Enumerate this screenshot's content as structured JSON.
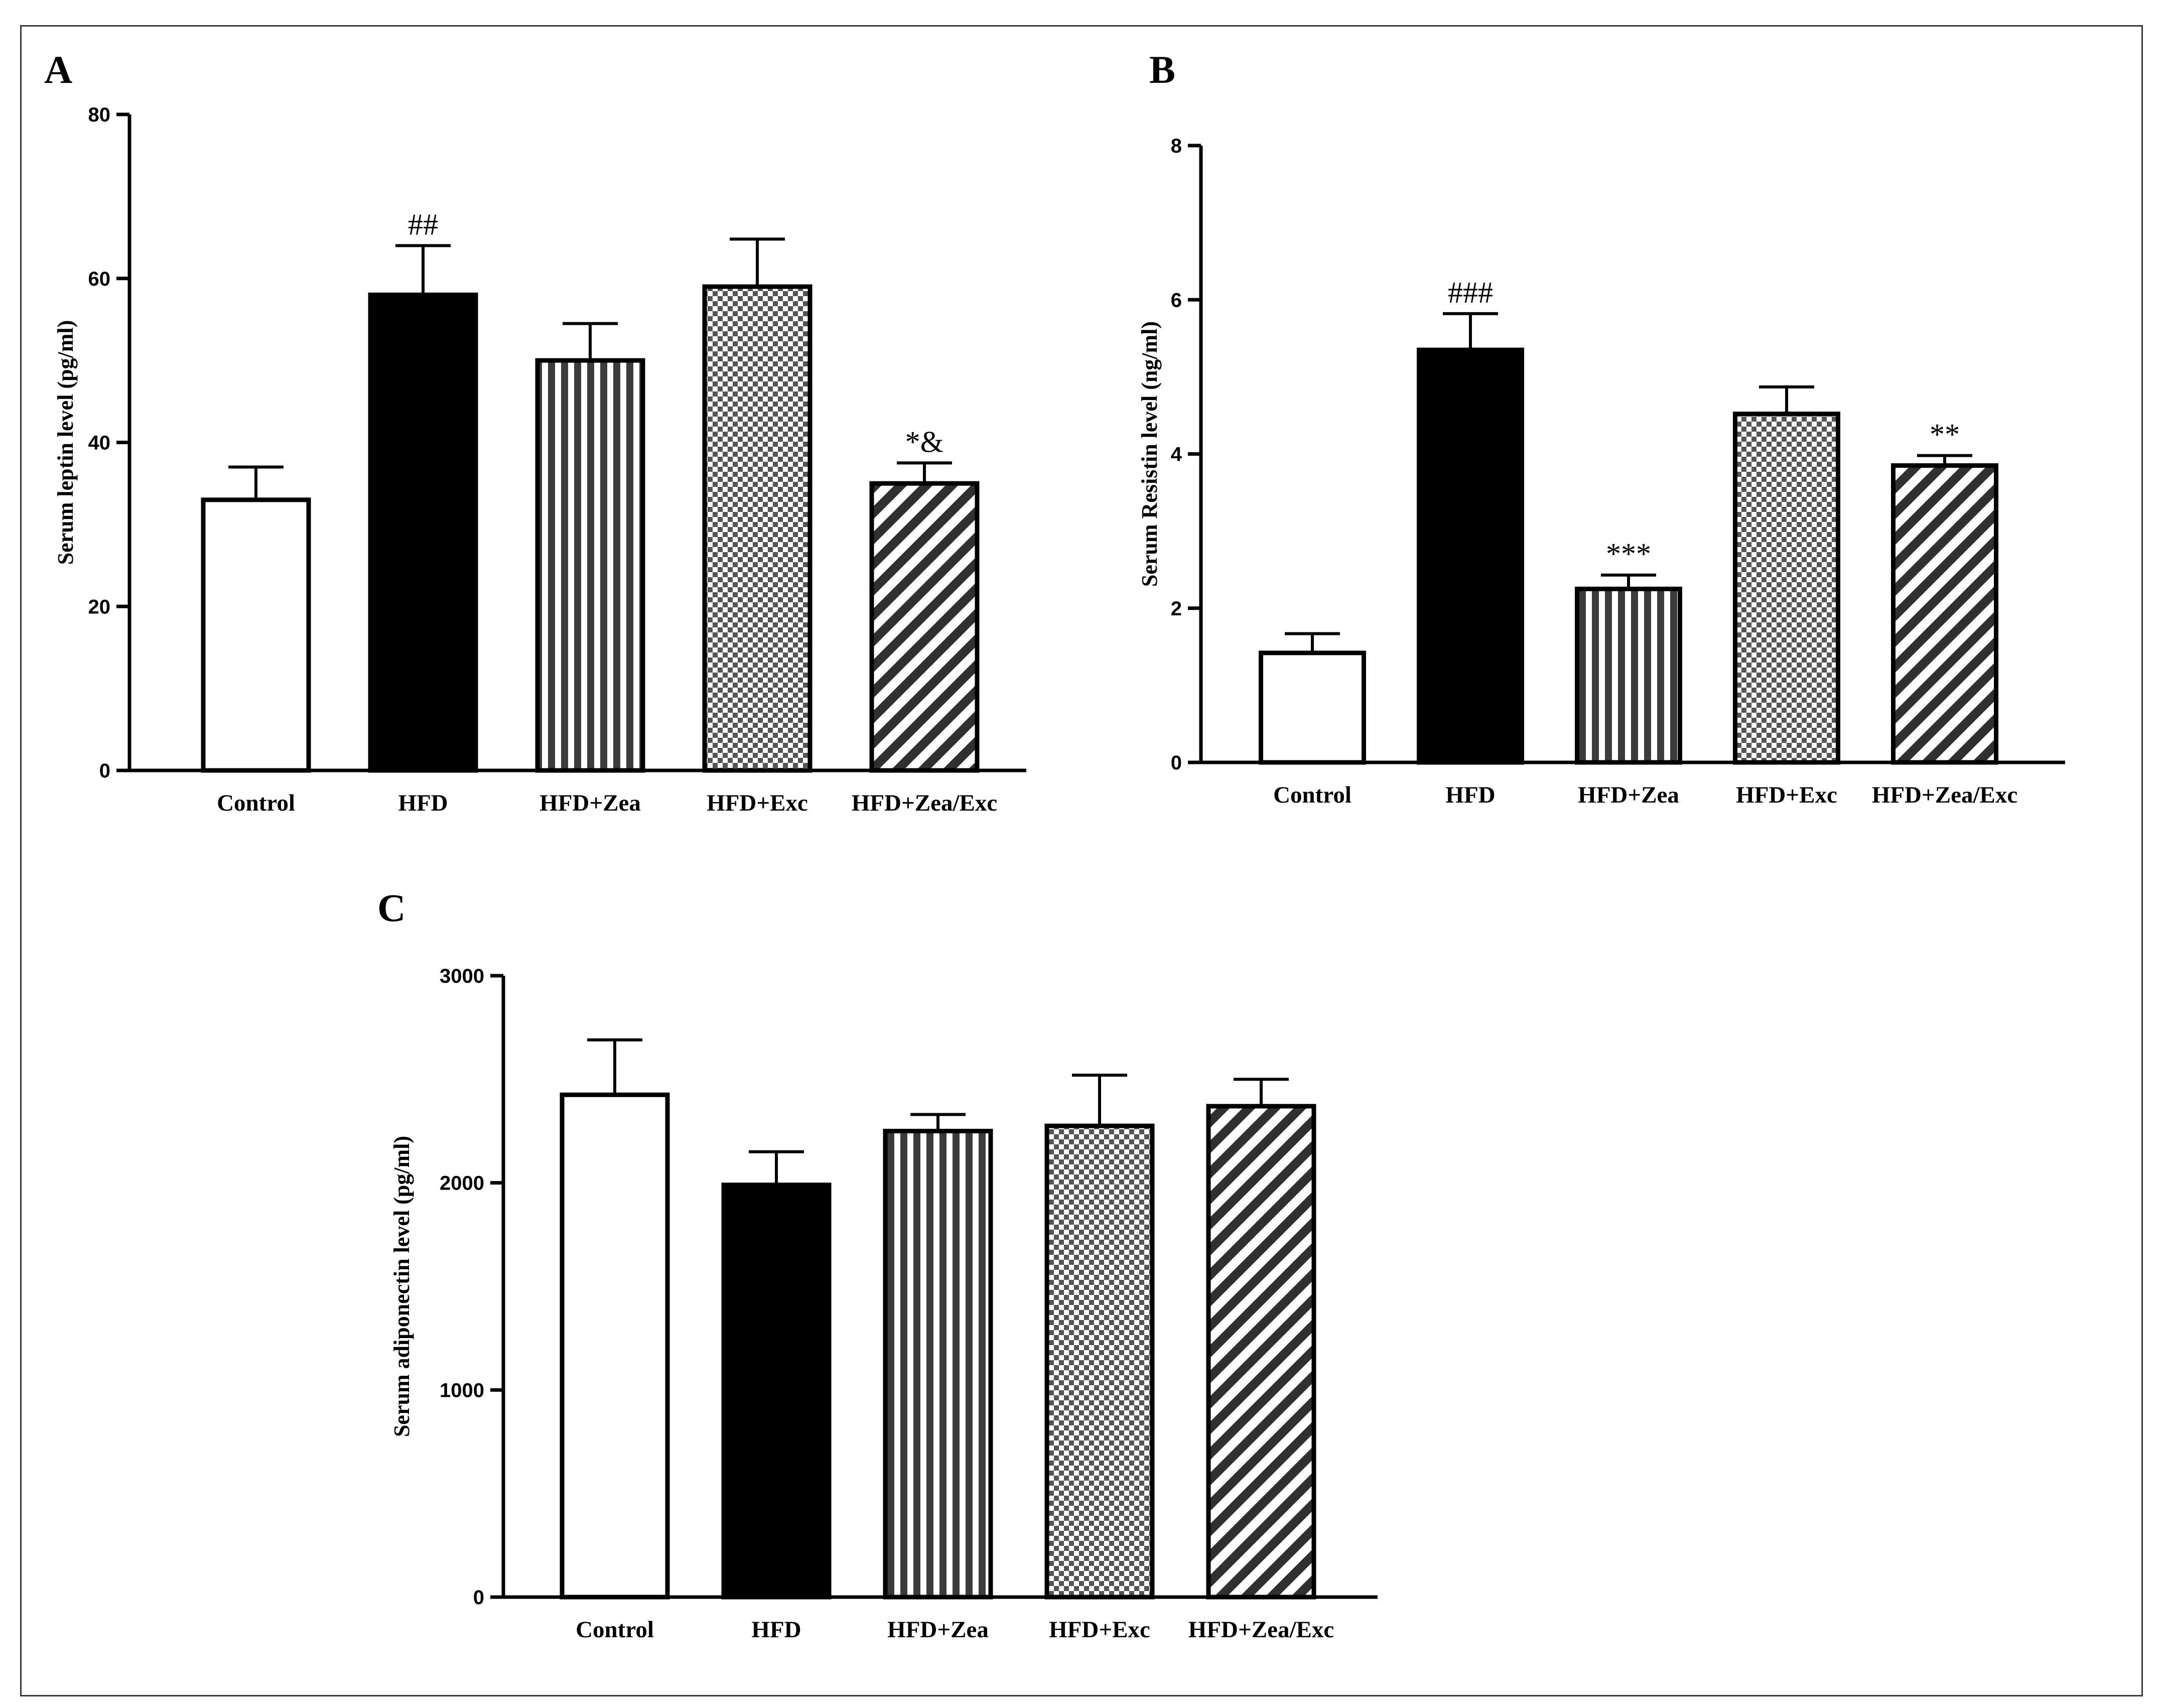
{
  "colors": {
    "ink": "#000000",
    "paper": "#ffffff",
    "frame": "#3a3a3a"
  },
  "chart_data": [
    {
      "panel": "A",
      "type": "bar",
      "categories": [
        "Control",
        "HFD",
        "HFD+Zea",
        "HFD+Exc",
        "HFD+Zea/Exc"
      ],
      "patterns": [
        "solid-white",
        "solid-black",
        "vertical-stripes",
        "checker",
        "diagonal-stripes"
      ],
      "values": [
        33,
        58,
        50,
        59,
        35
      ],
      "errors": [
        4,
        6,
        4.5,
        5.8,
        2.5
      ],
      "annotations": [
        "",
        "##",
        "",
        "",
        "*&"
      ],
      "ylabel": "Serum leptin level (pg/ml)",
      "ylim": [
        0,
        80
      ],
      "yticks": [
        0,
        20,
        40,
        60,
        80
      ]
    },
    {
      "panel": "B",
      "type": "bar",
      "categories": [
        "Control",
        "HFD",
        "HFD+Zea",
        "HFD+Exc",
        "HFD+Zea/Exc"
      ],
      "patterns": [
        "solid-white",
        "solid-black",
        "vertical-stripes",
        "checker",
        "diagonal-stripes"
      ],
      "values": [
        1.42,
        5.35,
        2.25,
        4.52,
        3.85
      ],
      "errors": [
        0.25,
        0.47,
        0.18,
        0.35,
        0.13
      ],
      "annotations": [
        "",
        "###",
        "***",
        "",
        "**"
      ],
      "ylabel": "Serum Resistin level (ng/ml)",
      "ylim": [
        0,
        8
      ],
      "yticks": [
        0,
        2,
        4,
        6,
        8
      ]
    },
    {
      "panel": "C",
      "type": "bar",
      "categories": [
        "Control",
        "HFD",
        "HFD+Zea",
        "HFD+Exc",
        "HFD+Zea/Exc"
      ],
      "patterns": [
        "solid-white",
        "solid-black",
        "vertical-stripes",
        "checker",
        "diagonal-stripes"
      ],
      "values": [
        2425,
        1990,
        2250,
        2275,
        2370
      ],
      "errors": [
        265,
        160,
        80,
        245,
        130
      ],
      "annotations": [
        "",
        "",
        "",
        "",
        ""
      ],
      "ylabel": "Serum adiponectin level (pg/ml)",
      "ylim": [
        0,
        3000
      ],
      "yticks": [
        0,
        1000,
        2000,
        3000
      ]
    }
  ]
}
